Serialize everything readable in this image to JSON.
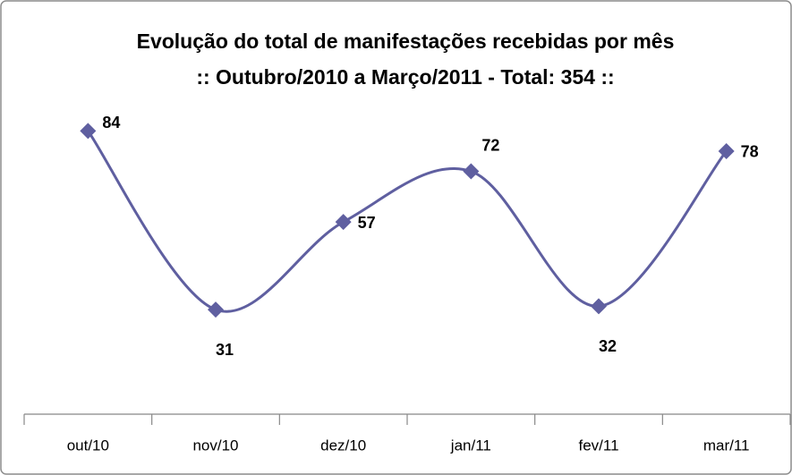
{
  "chart_data": {
    "type": "line",
    "title": "Evolução do total de manifestações recebidas por mês",
    "subtitle": ":: Outubro/2010 a Março/2011 - Total: 354 ::",
    "categories": [
      "out/10",
      "nov/10",
      "dez/10",
      "jan/11",
      "fev/11",
      "mar/11"
    ],
    "values": [
      84,
      31,
      57,
      72,
      32,
      78
    ],
    "color": "#5f5fa0",
    "ylim": [
      0,
      100
    ]
  }
}
